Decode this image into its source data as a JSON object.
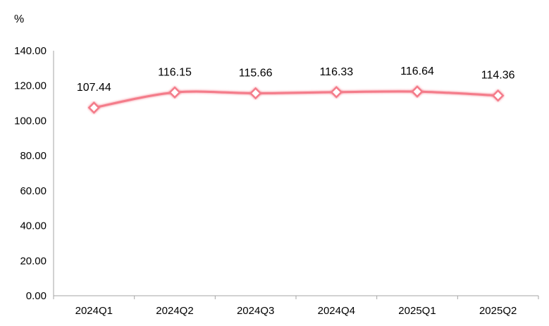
{
  "chart_data": {
    "type": "line",
    "unit_label": "%",
    "categories": [
      "2024Q1",
      "2024Q2",
      "2024Q3",
      "2024Q4",
      "2025Q1",
      "2025Q2"
    ],
    "values": [
      107.44,
      116.15,
      115.66,
      116.33,
      116.64,
      114.36
    ],
    "data_labels": [
      "107.44",
      "116.15",
      "115.66",
      "116.33",
      "116.64",
      "114.36"
    ],
    "y_ticks": [
      "0.00",
      "20.00",
      "40.00",
      "60.00",
      "80.00",
      "100.00",
      "120.00",
      "140.00"
    ],
    "ylim": [
      0,
      140
    ],
    "grid": false,
    "line_color": "#f47b8a",
    "marker": "diamond"
  }
}
